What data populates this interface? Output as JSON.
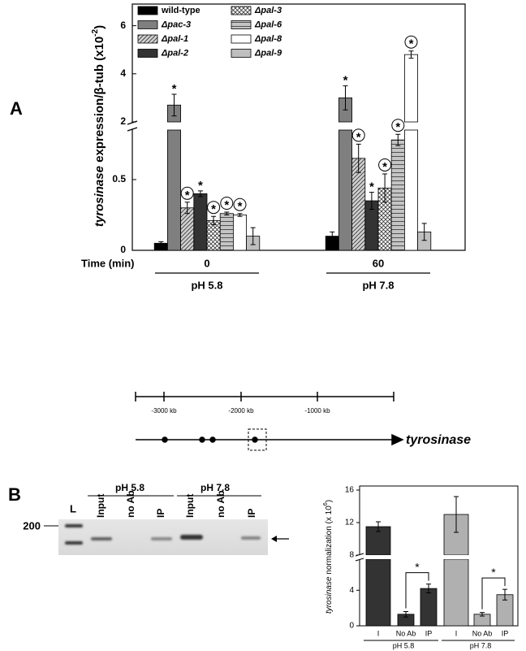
{
  "panels": [
    "A",
    "B"
  ],
  "chart_data": [
    {
      "type": "bar",
      "y_label": [
        "tyrosinase",
        " expression/β-tub (x10",
        "-2",
        ")"
      ],
      "x_label": "Time (min)",
      "categories": [
        "0",
        "60"
      ],
      "group_labels": [
        "pH 5.8",
        "pH 7.8"
      ],
      "ylim": [
        0,
        6.9
      ],
      "ybreak": [
        0.85,
        2
      ],
      "yticks": [
        0,
        0.5,
        2,
        4,
        6
      ],
      "series": [
        {
          "name": "wild-type",
          "color": "#000000",
          "values": [
            0.05,
            0.1
          ],
          "errors": [
            0.01,
            0.03
          ],
          "annotations": [
            null,
            null
          ]
        },
        {
          "name": "Δpac-3",
          "color": "#7f7f7f",
          "values": [
            2.7,
            3.0
          ],
          "errors": [
            0.45,
            0.5
          ],
          "annotations": [
            {
              "text": "*",
              "circled": false
            },
            {
              "text": "*",
              "circled": false
            }
          ]
        },
        {
          "name": "Δpal-1",
          "color": "#d0d0d0",
          "pattern": "diagonal",
          "values": [
            0.3,
            0.65
          ],
          "errors": [
            0.04,
            0.1
          ],
          "annotations": [
            {
              "text": "*",
              "circled": true
            },
            {
              "text": "*",
              "circled": true
            }
          ]
        },
        {
          "name": "Δpal-2",
          "color": "#333333",
          "values": [
            0.4,
            0.35
          ],
          "errors": [
            0.02,
            0.06
          ],
          "annotations": [
            {
              "text": "*",
              "circled": false
            },
            {
              "text": "*",
              "circled": false
            }
          ]
        },
        {
          "name": "Δpal-3",
          "color": "#ffffff",
          "pattern": "crosshatch",
          "values": [
            0.21,
            0.44
          ],
          "errors": [
            0.03,
            0.1
          ],
          "annotations": [
            {
              "text": "*",
              "circled": true
            },
            {
              "text": "*",
              "circled": true
            }
          ]
        },
        {
          "name": "Δpal-6",
          "color": "#c4c4c4",
          "pattern": "horizontal",
          "values": [
            0.26,
            0.78
          ],
          "errors": [
            0.01,
            0.04
          ],
          "annotations": [
            {
              "text": "*",
              "circled": true
            },
            {
              "text": "*",
              "circled": true
            }
          ]
        },
        {
          "name": "Δpal-8",
          "color": "#ffffff",
          "values": [
            0.25,
            4.8
          ],
          "errors": [
            0.01,
            0.15
          ],
          "annotations": [
            {
              "text": "*",
              "circled": true
            },
            {
              "text": "*",
              "circled": true
            }
          ]
        },
        {
          "name": "Δpal-9",
          "color": "#bfbfbf",
          "values": [
            0.1,
            0.13
          ],
          "errors": [
            0.06,
            0.06
          ],
          "annotations": [
            null,
            null
          ]
        }
      ]
    },
    {
      "type": "bar",
      "y_label": [
        "tyrosinase",
        " normalization (x 10",
        "6",
        ")"
      ],
      "ylim": [
        0,
        16.5
      ],
      "ybreak": [
        7.5,
        8
      ],
      "yticks": [
        0,
        4,
        8,
        12,
        16
      ],
      "groups": [
        {
          "name": "pH 5.8",
          "color": "#333333",
          "categories": [
            "I",
            "No Ab",
            "IP"
          ],
          "values": [
            11.5,
            1.3,
            4.2
          ],
          "errors": [
            0.6,
            0.3,
            0.5
          ],
          "annotation": "*"
        },
        {
          "name": "pH 7.8",
          "color": "#b0b0b0",
          "categories": [
            "I",
            "No Ab",
            "IP"
          ],
          "values": [
            13.0,
            1.3,
            3.5
          ],
          "errors": [
            2.2,
            0.2,
            0.6
          ],
          "annotation": "*"
        }
      ]
    }
  ],
  "diagram": {
    "scale_labels": [
      "-3000 kb",
      "-2000 kb",
      "-1000 kb"
    ],
    "gene": "tyrosinase"
  },
  "gel": {
    "conditions": [
      "pH 5.8",
      "pH 7.8"
    ],
    "lanes": [
      "L",
      "Input",
      "no Ab",
      "IP",
      "Input",
      "no Ab",
      "IP"
    ],
    "marker": "200"
  }
}
